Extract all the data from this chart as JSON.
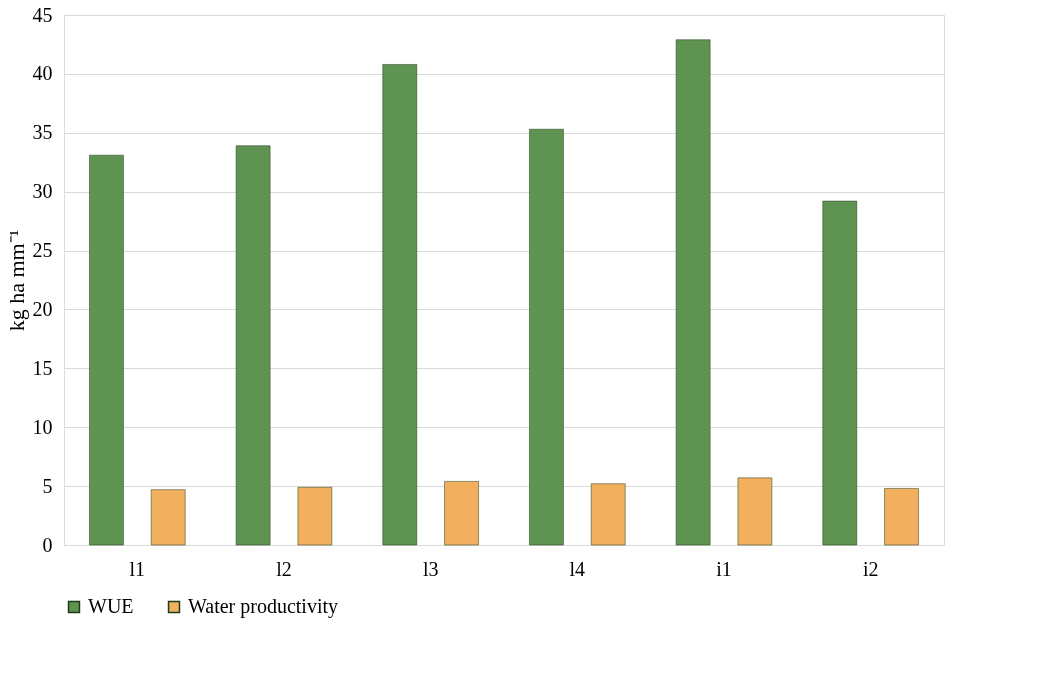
{
  "chart_data": {
    "type": "bar",
    "ylabel": "kg ha mm⁻¹",
    "categories": [
      "l1",
      "l2",
      "l3",
      "l4",
      "i1",
      "i2"
    ],
    "series": [
      {
        "name": "WUE",
        "color": "#5e9352",
        "values": [
          33.1,
          33.9,
          40.8,
          35.3,
          42.9,
          29.2
        ]
      },
      {
        "name": "Water productivity",
        "color": "#f2b05e",
        "values": [
          4.7,
          4.9,
          5.4,
          5.2,
          5.7,
          4.8
        ]
      }
    ],
    "ylim": [
      0,
      45
    ],
    "yticks": [
      0,
      5,
      10,
      15,
      20,
      25,
      30,
      35,
      40,
      45
    ],
    "grid": "y",
    "legend": "bottom"
  }
}
